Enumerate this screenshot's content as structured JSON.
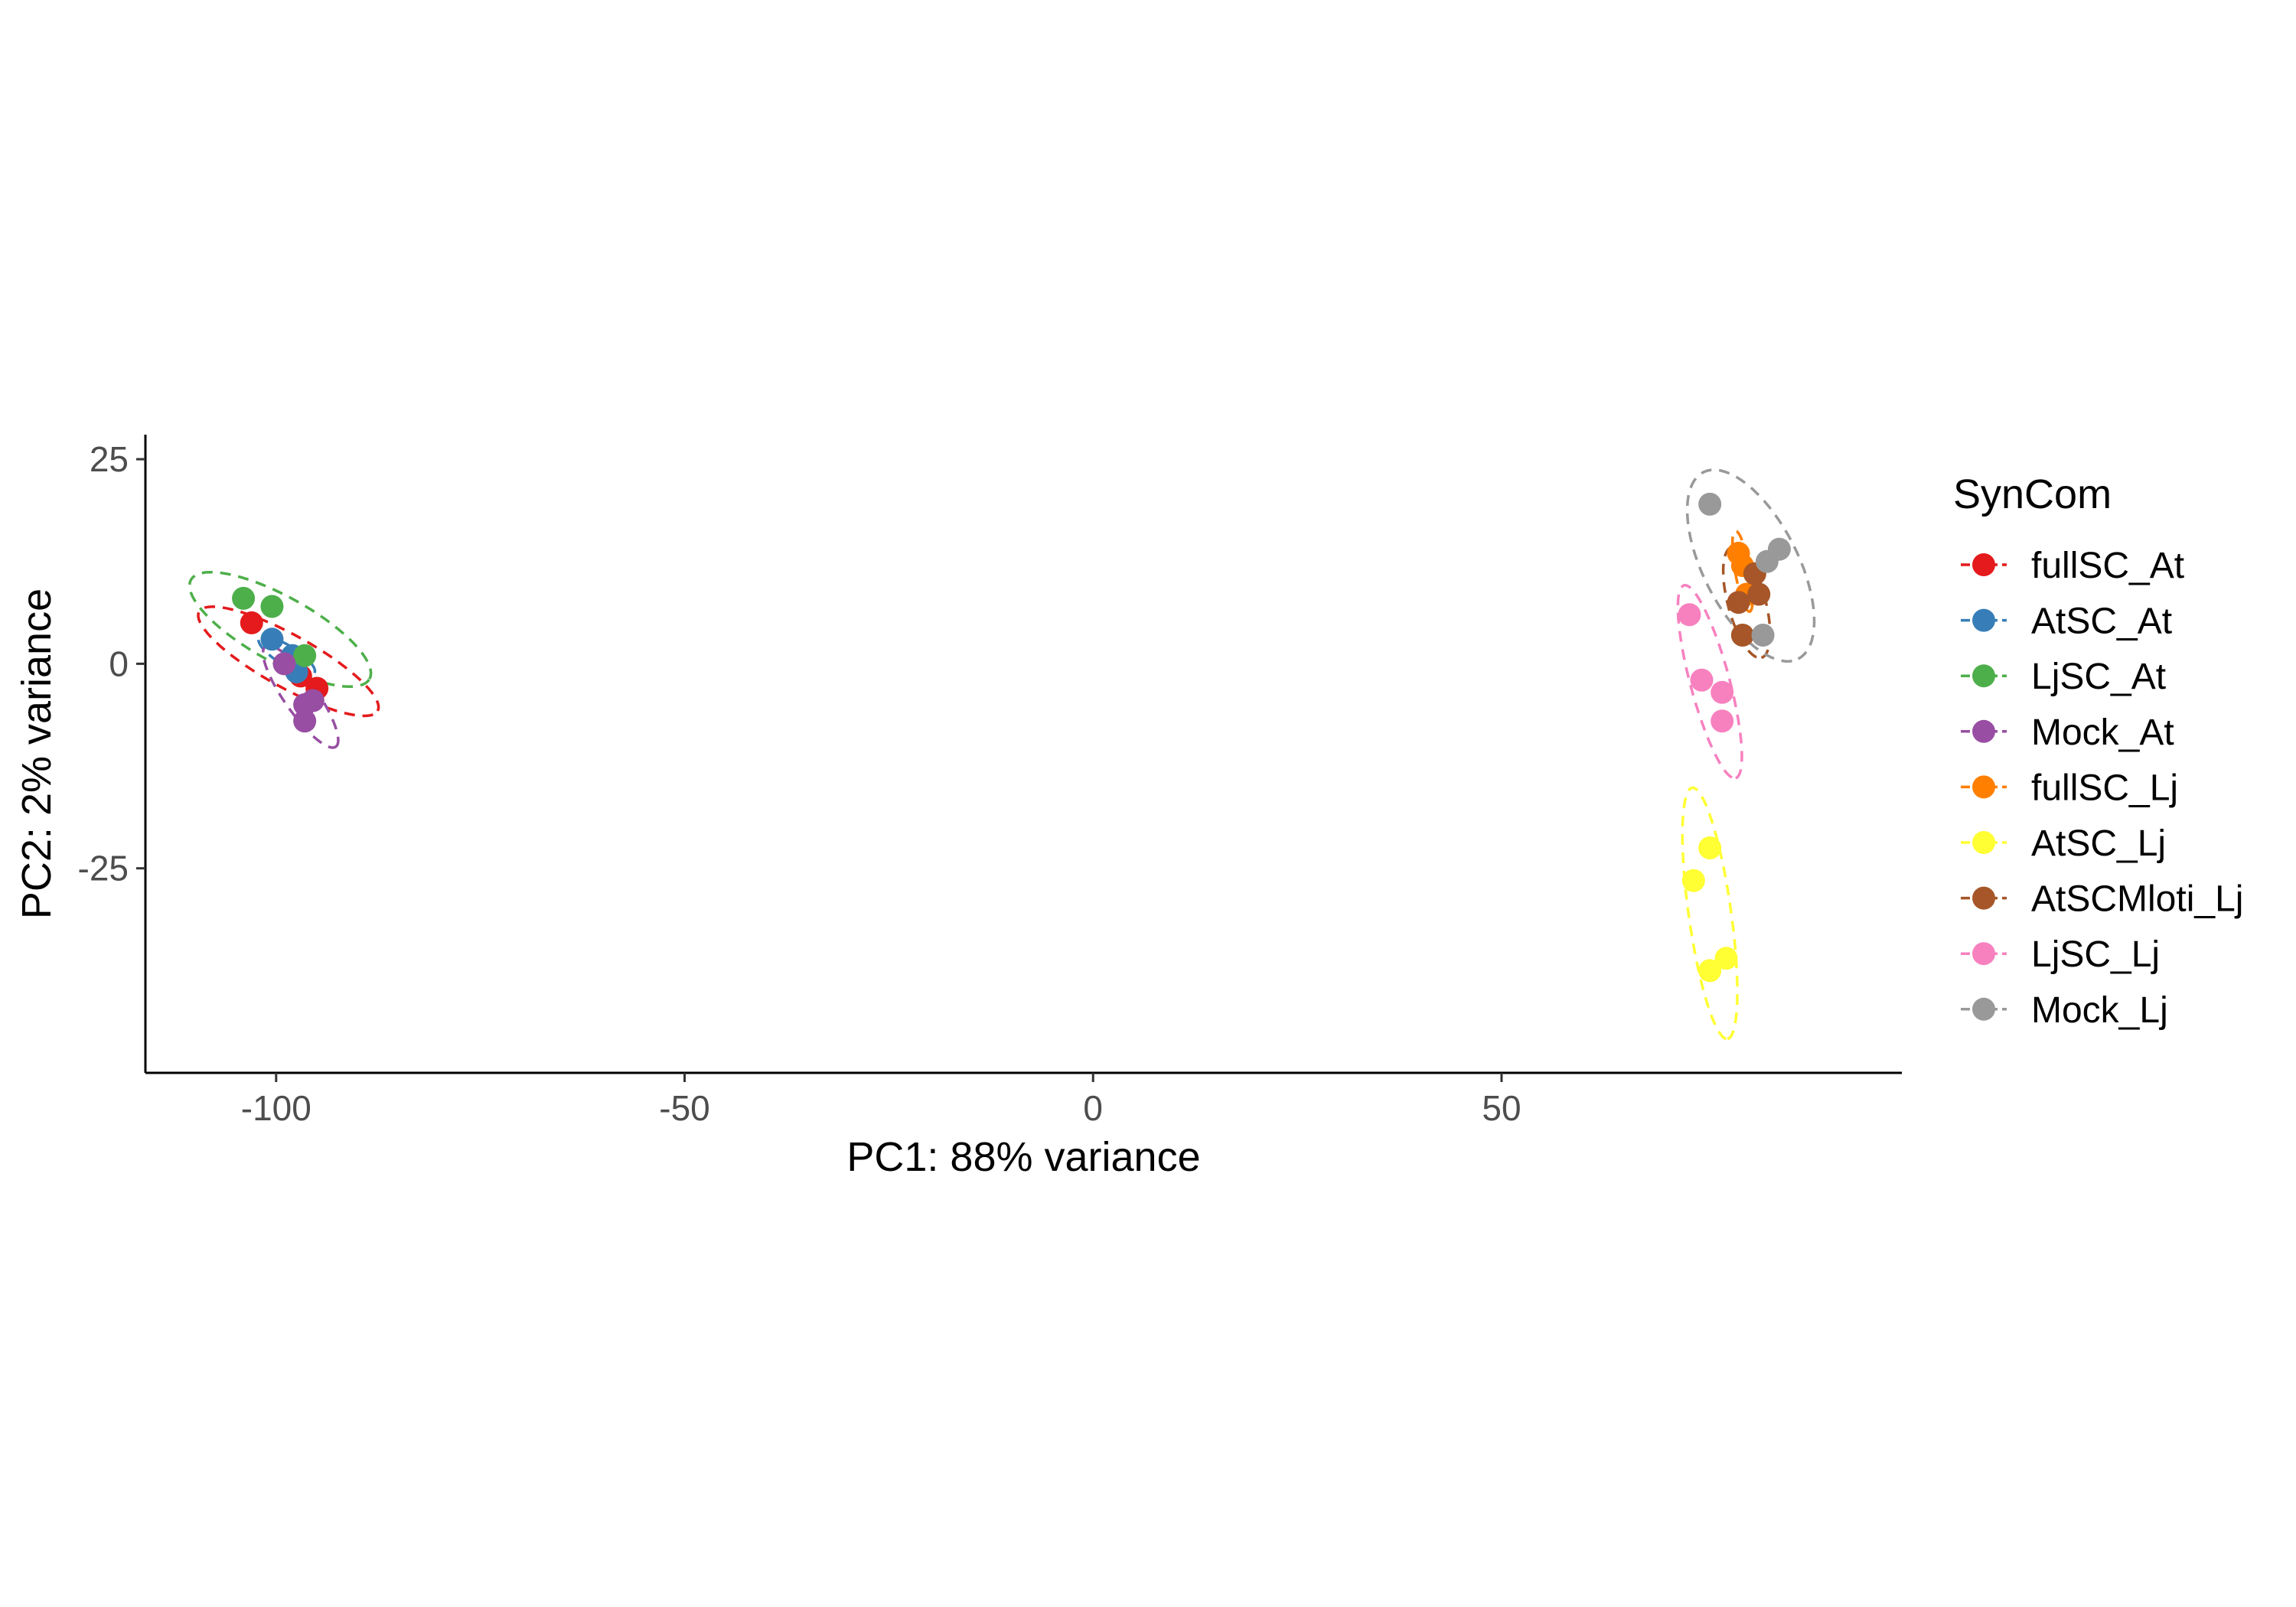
{
  "chart_data": {
    "type": "scatter",
    "title": "",
    "xlabel": "PC1: 88% variance",
    "ylabel": "PC2: 2% variance",
    "xlim": [
      -116,
      99
    ],
    "ylim": [
      -50,
      28
    ],
    "xticks": [
      -100,
      -50,
      0,
      50
    ],
    "xtick_labels": [
      "-100",
      "-50",
      "0",
      "50"
    ],
    "yticks": [
      -25,
      0,
      25
    ],
    "ytick_labels": [
      "-25",
      "0",
      "25"
    ],
    "grid": false,
    "legend": {
      "title": "SynCom",
      "position": "right"
    },
    "series": [
      {
        "name": "fullSC_At",
        "color": "#E41A1C",
        "points": [
          [
            -103,
            5
          ],
          [
            -97,
            -1.5
          ],
          [
            -95,
            -3
          ]
        ],
        "ellipse": {
          "cx": -98.5,
          "cy": 0.3,
          "rx": 12.5,
          "ry": 3.2,
          "angle": -29
        }
      },
      {
        "name": "AtSC_At",
        "color": "#377EB8",
        "points": [
          [
            -100.5,
            3
          ],
          [
            -98,
            1
          ],
          [
            -97.5,
            -1
          ]
        ],
        "ellipse": {
          "cx": -98.7,
          "cy": 1.0,
          "rx": 4.0,
          "ry": 1.2,
          "angle": -32
        }
      },
      {
        "name": "LjSC_At",
        "color": "#4DAF4A",
        "points": [
          [
            -104,
            8
          ],
          [
            -100.5,
            7
          ],
          [
            -96.5,
            1
          ]
        ],
        "ellipse": {
          "cx": -99.5,
          "cy": 4.2,
          "rx": 12.5,
          "ry": 4.0,
          "angle": -29
        }
      },
      {
        "name": "Mock_At",
        "color": "#984EA3",
        "points": [
          [
            -99,
            0
          ],
          [
            -96.5,
            -5
          ],
          [
            -96.5,
            -7
          ],
          [
            -95.5,
            -4.5
          ]
        ],
        "ellipse": {
          "cx": -97.0,
          "cy": -4.0,
          "rx": 7.5,
          "ry": 2.0,
          "angle": -55
        }
      },
      {
        "name": "fullSC_Lj",
        "color": "#FF7F00",
        "points": [
          [
            79,
            13.5
          ],
          [
            80,
            8.5
          ],
          [
            79.5,
            12
          ]
        ],
        "ellipse": {
          "cx": 79.5,
          "cy": 11.3,
          "rx": 5.0,
          "ry": 0.9,
          "angle": -80
        }
      },
      {
        "name": "AtSC_Lj",
        "color": "#FFFF33",
        "points": [
          [
            75.5,
            -22.5
          ],
          [
            73.5,
            -26.5
          ],
          [
            75.5,
            -37.5
          ],
          [
            77.5,
            -36
          ]
        ],
        "ellipse": {
          "cx": 75.5,
          "cy": -30.5,
          "rx": 15.5,
          "ry": 2.6,
          "angle": -82
        }
      },
      {
        "name": "AtSCMloti_Lj",
        "color": "#A65628",
        "points": [
          [
            79,
            7.5
          ],
          [
            81.5,
            8.5
          ],
          [
            79.5,
            3.5
          ],
          [
            81,
            11
          ]
        ],
        "ellipse": {
          "cx": 80.0,
          "cy": 7.5,
          "rx": 7.0,
          "ry": 2.3,
          "angle": -75
        }
      },
      {
        "name": "LjSC_Lj",
        "color": "#F781BF",
        "points": [
          [
            73,
            6
          ],
          [
            74.5,
            -2
          ],
          [
            77,
            -3.5
          ],
          [
            77,
            -7
          ]
        ],
        "ellipse": {
          "cx": 75.5,
          "cy": -2.2,
          "rx": 12.2,
          "ry": 2.4,
          "angle": -75
        }
      },
      {
        "name": "Mock_Lj",
        "color": "#999999",
        "points": [
          [
            75.5,
            19.5
          ],
          [
            82.5,
            12.5
          ],
          [
            84,
            14
          ],
          [
            82,
            3.5
          ]
        ],
        "ellipse": {
          "cx": 80.5,
          "cy": 12.0,
          "rx": 12.8,
          "ry": 5.8,
          "angle": -63
        }
      }
    ]
  }
}
